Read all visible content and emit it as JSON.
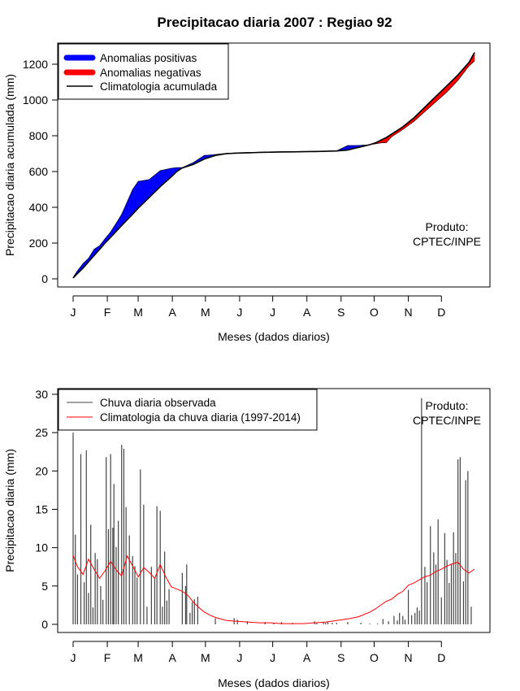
{
  "chart_data": [
    {
      "type": "area",
      "title": "Precipitacao diaria 2007 : Regiao 92",
      "xlabel": "Meses (dados diarios)",
      "ylabel": "Precipitacao diaria acumulada (mm)",
      "xlim": [
        1,
        365
      ],
      "ylim": [
        0,
        1300
      ],
      "yticks": [
        0,
        200,
        400,
        600,
        800,
        1000,
        1200
      ],
      "month_ticks": [
        "J",
        "F",
        "M",
        "A",
        "M",
        "J",
        "J",
        "A",
        "S",
        "O",
        "N",
        "D"
      ],
      "legend": [
        "Anomalias positivas",
        "Anomalias negativas",
        "Climatologia acumulada"
      ],
      "annotation": [
        "Produto:",
        "CPTEC/INPE"
      ],
      "x": [
        1,
        5,
        10,
        15,
        20,
        25,
        30,
        35,
        40,
        45,
        50,
        55,
        60,
        70,
        80,
        90,
        95,
        100,
        110,
        120,
        130,
        140,
        150,
        160,
        170,
        180,
        190,
        200,
        210,
        220,
        230,
        240,
        250,
        255,
        260,
        270,
        275,
        280,
        285,
        290,
        300,
        310,
        320,
        330,
        340,
        350,
        360,
        365
      ],
      "climatology": [
        5,
        30,
        60,
        95,
        130,
        165,
        200,
        232,
        265,
        298,
        330,
        362,
        395,
        455,
        515,
        570,
        600,
        620,
        640,
        670,
        690,
        700,
        703,
        705,
        707,
        708,
        709,
        710,
        711,
        712,
        713,
        715,
        720,
        728,
        735,
        750,
        760,
        775,
        790,
        810,
        850,
        900,
        960,
        1020,
        1080,
        1140,
        1210,
        1265
      ],
      "observed": [
        8,
        45,
        85,
        115,
        165,
        185,
        225,
        262,
        310,
        360,
        430,
        500,
        545,
        555,
        605,
        618,
        622,
        622,
        650,
        690,
        695,
        702,
        704,
        707,
        708,
        710,
        711,
        712,
        712,
        713,
        714,
        716,
        745,
        745,
        746,
        750,
        755,
        760,
        762,
        795,
        835,
        880,
        935,
        990,
        1045,
        1110,
        1190,
        1218
      ]
    },
    {
      "type": "line",
      "xlabel": "Meses (dados diarios)",
      "ylabel": "Precipitacao diaria (mm)",
      "xlim": [
        1,
        365
      ],
      "ylim": [
        0,
        30
      ],
      "yticks": [
        0,
        5,
        10,
        15,
        20,
        25,
        30
      ],
      "month_ticks": [
        "J",
        "F",
        "M",
        "A",
        "M",
        "J",
        "J",
        "A",
        "S",
        "O",
        "N",
        "D"
      ],
      "legend": [
        "Chuva diaria observada",
        "Climatologia da chuva diaria (1997-2014)"
      ],
      "annotation": [
        "Produto:",
        "CPTEC/INPE"
      ],
      "series": [
        {
          "name": "Chuva diaria observada",
          "color": "#444444",
          "style": "vertical-bars",
          "x": [
            1,
            3,
            5,
            8,
            11,
            13,
            15,
            17,
            19,
            21,
            23,
            26,
            28,
            31,
            33,
            35,
            37,
            38,
            40,
            42,
            45,
            47,
            49,
            52,
            55,
            57,
            59,
            62,
            65,
            68,
            72,
            75,
            77,
            80,
            82,
            84,
            86,
            88,
            100,
            103,
            104,
            107,
            109,
            111,
            114,
            130,
            147,
            150,
            159,
            175,
            183,
            190,
            200,
            220,
            222,
            228,
            230,
            232,
            236,
            240,
            250,
            262,
            270,
            277,
            282,
            287,
            292,
            295,
            297,
            300,
            302,
            305,
            308,
            311,
            313,
            315,
            317,
            320,
            322,
            325,
            328,
            330,
            332,
            335,
            338,
            340,
            342,
            344,
            346,
            348,
            350,
            352,
            355,
            357,
            359,
            362
          ],
          "values": [
            25,
            11.7,
            6.5,
            22.2,
            5.5,
            22.7,
            4.1,
            13,
            2.2,
            9.3,
            8.5,
            5,
            3.2,
            21.8,
            12.4,
            22.2,
            12.6,
            18.3,
            10.1,
            13.5,
            23.4,
            22.9,
            15.3,
            11.6,
            8.9,
            7.6,
            6.1,
            20.2,
            15.6,
            2.3,
            7.5,
            6.1,
            15.4,
            14.8,
            2.3,
            9.5,
            3.1,
            4.6,
            6.7,
            5,
            7.8,
            1.5,
            2.9,
            3.3,
            3.6,
            0.8,
            0.8,
            0.6,
            0.4,
            0.3,
            0.2,
            0.3,
            0.2,
            0.4,
            0.2,
            0.3,
            0.2,
            0.3,
            0.2,
            0.2,
            0.3,
            0.2,
            0.1,
            0.1,
            0.7,
            0.4,
            1.1,
            0.5,
            1.5,
            1.1,
            0.6,
            4.5,
            1.2,
            1.5,
            2.2,
            1.8,
            29.5,
            7.5,
            5.5,
            12.8,
            9.4,
            7.8,
            13.7,
            3.5,
            11.9,
            8.4,
            5.4,
            7.9,
            12,
            9.3,
            21.5,
            21.8,
            5.6,
            18.8,
            20,
            2.3
          ]
        },
        {
          "name": "Climatologia da chuva diaria (1997-2014)",
          "color": "#ff0000",
          "x": [
            1,
            5,
            10,
            15,
            20,
            25,
            30,
            35,
            40,
            45,
            50,
            55,
            60,
            65,
            70,
            75,
            80,
            85,
            90,
            95,
            100,
            105,
            110,
            115,
            120,
            125,
            130,
            135,
            140,
            150,
            160,
            170,
            180,
            190,
            200,
            210,
            220,
            230,
            240,
            250,
            260,
            270,
            275,
            280,
            285,
            290,
            295,
            300,
            305,
            310,
            315,
            320,
            325,
            330,
            335,
            340,
            345,
            350,
            355,
            360,
            365
          ],
          "values": [
            9,
            7.5,
            6.5,
            8.5,
            7.2,
            6,
            7,
            8.2,
            7.1,
            6.3,
            8.9,
            7.6,
            6.2,
            7.4,
            6.8,
            6,
            7.8,
            6.2,
            4.9,
            4.6,
            4.3,
            3.8,
            2.9,
            2.2,
            1.6,
            1.2,
            0.9,
            0.7,
            0.5,
            0.4,
            0.3,
            0.2,
            0.2,
            0.1,
            0.1,
            0.1,
            0.2,
            0.3,
            0.5,
            0.7,
            1,
            1.6,
            2,
            2.5,
            3,
            3.3,
            3.9,
            4.3,
            5.1,
            5.4,
            5.8,
            6.2,
            6.4,
            6.9,
            7.2,
            7.6,
            7.9,
            8.1,
            7.2,
            6.7,
            7.2
          ]
        }
      ]
    }
  ]
}
